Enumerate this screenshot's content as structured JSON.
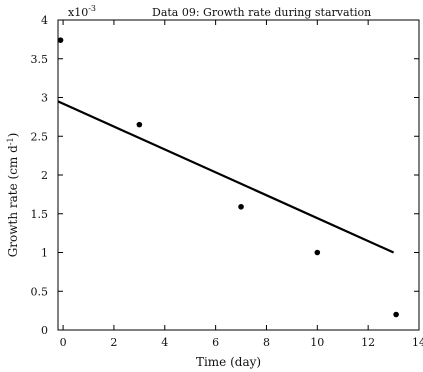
{
  "chart_data": {
    "type": "scatter",
    "title": "Data 09: Growth rate during starvation",
    "xlabel": "Time (day)",
    "ylabel_main": "Growth rate (cm d",
    "ylabel_exp": "-1",
    "ylabel_close": ")",
    "y_multiplier_base": "x10",
    "y_multiplier_exp": "-3",
    "xlim": [
      -0.2,
      14
    ],
    "ylim": [
      0,
      4
    ],
    "xticks": [
      0,
      2,
      4,
      6,
      8,
      10,
      12,
      14
    ],
    "yticks": [
      0,
      0.5,
      1,
      1.5,
      2,
      2.5,
      3,
      3.5,
      4
    ],
    "series": [
      {
        "kind": "points",
        "x": [
          -0.1,
          3,
          7,
          10,
          13.1
        ],
        "y": [
          3.74,
          2.65,
          1.59,
          1.0,
          0.2
        ]
      },
      {
        "kind": "line",
        "x": [
          -0.2,
          13.0
        ],
        "y": [
          2.95,
          1.0
        ]
      }
    ],
    "grid": false,
    "box": true
  }
}
